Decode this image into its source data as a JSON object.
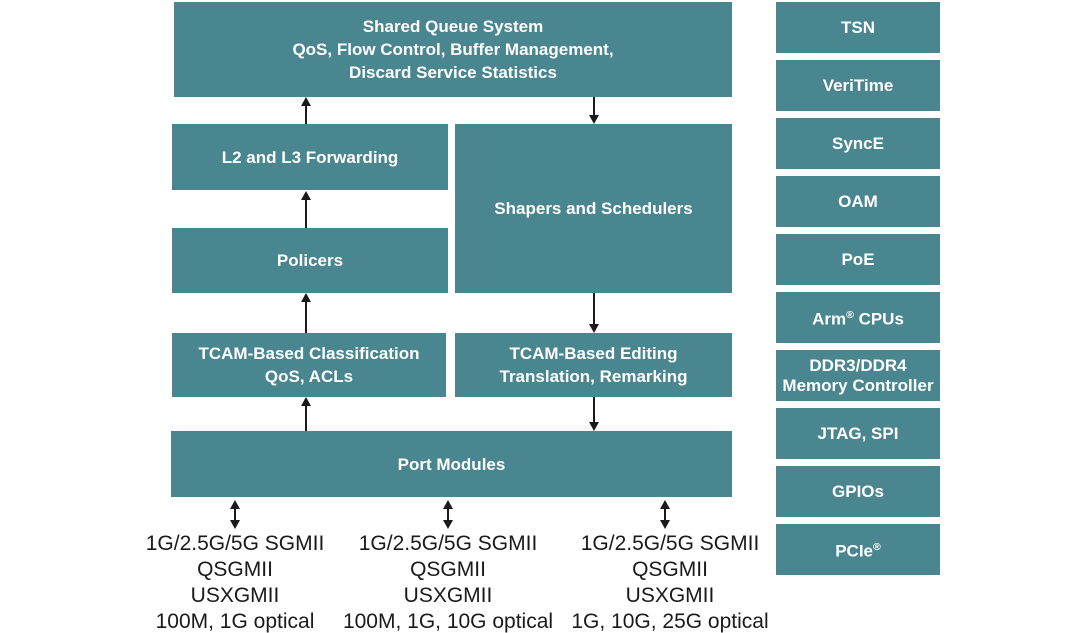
{
  "colors": {
    "block": "#4A8690",
    "block_text": "#FFFFFF",
    "arrow_and_text": "#1A1A1A",
    "background": "#FFFFFF"
  },
  "main_blocks": {
    "shared_queue": {
      "lines": [
        "Shared Queue System",
        "QoS, Flow Control, Buffer Management,",
        "Discard Service Statistics"
      ]
    },
    "l2_l3_forwarding": {
      "label": "L2 and L3 Forwarding"
    },
    "shapers_schedulers": {
      "label": "Shapers and Schedulers"
    },
    "policers": {
      "label": "Policers"
    },
    "tcam_classification": {
      "lines": [
        "TCAM-Based Classification",
        "QoS, ACLs"
      ]
    },
    "tcam_editing": {
      "lines": [
        "TCAM-Based Editing",
        "Translation, Remarking"
      ]
    },
    "port_modules": {
      "label": "Port Modules"
    }
  },
  "side_blocks": [
    {
      "label": "TSN"
    },
    {
      "label": "VeriTime"
    },
    {
      "label": "SyncE"
    },
    {
      "label": "OAM"
    },
    {
      "label": "PoE"
    },
    {
      "label": "Arm® CPUs"
    },
    {
      "lines": [
        "DDR3/DDR4",
        "Memory Controller"
      ]
    },
    {
      "label": "JTAG, SPI"
    },
    {
      "label": "GPIOs"
    },
    {
      "label": "PCIe®"
    }
  ],
  "port_interfaces": [
    {
      "lines": [
        "1G/2.5G/5G SGMII",
        "QSGMII",
        "USXGMII",
        "100M, 1G optical"
      ]
    },
    {
      "lines": [
        "1G/2.5G/5G SGMII",
        "QSGMII",
        "USXGMII",
        "100M, 1G, 10G optical"
      ]
    },
    {
      "lines": [
        "1G/2.5G/5G SGMII",
        "QSGMII",
        "USXGMII",
        "1G, 10G, 25G optical"
      ]
    }
  ]
}
